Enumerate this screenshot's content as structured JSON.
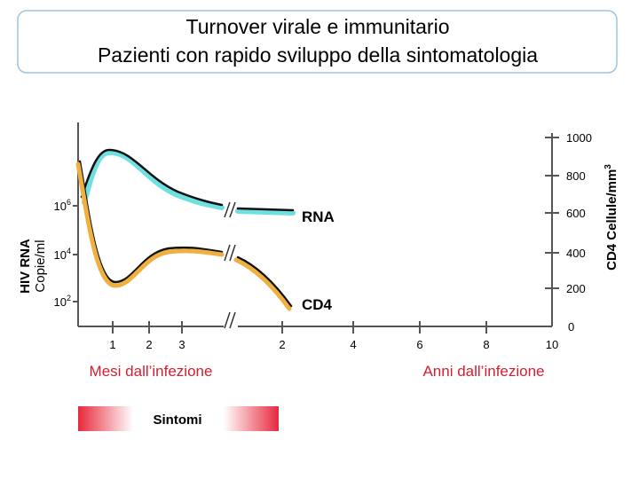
{
  "title": {
    "line1": "Turnover virale e immunitario",
    "line2": "Pazienti con rapido sviluppo della sintomatologia"
  },
  "left_axis": {
    "label_line1": "HIV RNA",
    "label_line2": "Copie/ml",
    "ticks": [
      {
        "base": "10",
        "sup": "6"
      },
      {
        "base": "10",
        "sup": "4"
      },
      {
        "base": "10",
        "sup": "2"
      }
    ]
  },
  "right_axis": {
    "label": "CD4 Cellule/mm",
    "label_sup": "3",
    "ticks": [
      "1000",
      "800",
      "600",
      "400",
      "200",
      "0"
    ]
  },
  "x_axis": {
    "months": [
      "1",
      "2",
      "3"
    ],
    "months_label": "Mesi dall’infezione",
    "years": [
      "2",
      "4",
      "6",
      "8",
      "10"
    ],
    "years_label": "Anni dall’infezione"
  },
  "curve_labels": {
    "rna": "RNA",
    "cd4": "CD4"
  },
  "symptoms": "Sintomi"
}
